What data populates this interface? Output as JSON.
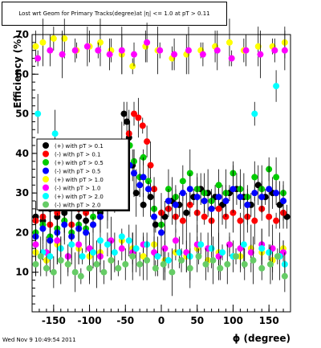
{
  "chart_data": {
    "type": "scatter",
    "title": "Lost wrt Geom for Primary Tracks(degree)at |η| <= 1.0 at pT > 0.11",
    "ylabel": "Efficiency (%)",
    "xlabel": "ϕ (degree)",
    "xlim": [
      -180,
      180
    ],
    "ylim": [
      0,
      70
    ],
    "x_ticks": [
      -150,
      -100,
      -50,
      0,
      50,
      100,
      150
    ],
    "y_ticks": [
      10,
      20,
      30,
      40,
      50,
      60,
      70
    ],
    "legend_position": "left-middle",
    "grid": false,
    "series": [
      {
        "name": "(+) with pT > 0.1",
        "color": "#000000",
        "values": [
          [
            -175,
            24
          ],
          [
            -165,
            23
          ],
          [
            -155,
            26
          ],
          [
            -145,
            24
          ],
          [
            -135,
            25
          ],
          [
            -125,
            27
          ],
          [
            -115,
            24
          ],
          [
            -105,
            23
          ],
          [
            -95,
            22
          ],
          [
            -85,
            25
          ],
          [
            -75,
            30
          ],
          [
            -65,
            29
          ],
          [
            -55,
            42
          ],
          [
            -52,
            50
          ],
          [
            -48,
            48
          ],
          [
            -45,
            44
          ],
          [
            -40,
            37
          ],
          [
            -35,
            30
          ],
          [
            -25,
            27
          ],
          [
            -15,
            29
          ],
          [
            -8,
            22
          ],
          [
            5,
            24
          ],
          [
            15,
            28
          ],
          [
            25,
            27
          ],
          [
            35,
            25
          ],
          [
            45,
            29
          ],
          [
            55,
            31
          ],
          [
            65,
            30
          ],
          [
            75,
            29
          ],
          [
            85,
            27
          ],
          [
            95,
            30
          ],
          [
            105,
            31
          ],
          [
            115,
            29
          ],
          [
            125,
            27
          ],
          [
            135,
            32
          ],
          [
            145,
            29
          ],
          [
            155,
            30
          ],
          [
            165,
            27
          ],
          [
            175,
            24
          ]
        ]
      },
      {
        "name": "(-) with pT > 0.1",
        "color": "#ff0000",
        "values": [
          [
            -175,
            23
          ],
          [
            -165,
            24
          ],
          [
            -155,
            22
          ],
          [
            -145,
            25
          ],
          [
            -135,
            23
          ],
          [
            -125,
            22
          ],
          [
            -115,
            26
          ],
          [
            -105,
            25
          ],
          [
            -95,
            27
          ],
          [
            -85,
            24
          ],
          [
            -75,
            28
          ],
          [
            -65,
            32
          ],
          [
            -55,
            38
          ],
          [
            -45,
            45
          ],
          [
            -38,
            50
          ],
          [
            -32,
            49
          ],
          [
            -26,
            47
          ],
          [
            -20,
            43
          ],
          [
            -15,
            37
          ],
          [
            -10,
            31
          ],
          [
            0,
            25
          ],
          [
            10,
            26
          ],
          [
            20,
            24
          ],
          [
            30,
            23
          ],
          [
            40,
            27
          ],
          [
            50,
            25
          ],
          [
            60,
            24
          ],
          [
            70,
            23
          ],
          [
            80,
            26
          ],
          [
            90,
            24
          ],
          [
            100,
            25
          ],
          [
            110,
            23
          ],
          [
            120,
            24
          ],
          [
            130,
            23
          ],
          [
            140,
            26
          ],
          [
            150,
            24
          ],
          [
            160,
            23
          ],
          [
            170,
            25
          ]
        ]
      },
      {
        "name": "(+) with pT > 0.5",
        "color": "#00cc00",
        "values": [
          [
            -175,
            20
          ],
          [
            -165,
            22
          ],
          [
            -155,
            19
          ],
          [
            -145,
            21
          ],
          [
            -135,
            23
          ],
          [
            -125,
            20
          ],
          [
            -115,
            22
          ],
          [
            -105,
            21
          ],
          [
            -95,
            24
          ],
          [
            -85,
            26
          ],
          [
            -75,
            29
          ],
          [
            -65,
            31
          ],
          [
            -58,
            36
          ],
          [
            -50,
            39
          ],
          [
            -44,
            42
          ],
          [
            -38,
            38
          ],
          [
            -30,
            34
          ],
          [
            -25,
            39
          ],
          [
            -18,
            33
          ],
          [
            -10,
            26
          ],
          [
            0,
            22
          ],
          [
            10,
            31
          ],
          [
            20,
            29
          ],
          [
            30,
            33
          ],
          [
            40,
            35
          ],
          [
            50,
            31
          ],
          [
            60,
            30
          ],
          [
            70,
            28
          ],
          [
            80,
            32
          ],
          [
            90,
            30
          ],
          [
            100,
            35
          ],
          [
            110,
            31
          ],
          [
            120,
            29
          ],
          [
            130,
            34
          ],
          [
            140,
            31
          ],
          [
            150,
            36
          ],
          [
            160,
            34
          ],
          [
            170,
            30
          ]
        ]
      },
      {
        "name": "(-) with pT > 0.5",
        "color": "#0000ff",
        "values": [
          [
            -175,
            19
          ],
          [
            -165,
            21
          ],
          [
            -155,
            18
          ],
          [
            -145,
            20
          ],
          [
            -135,
            22
          ],
          [
            -125,
            19
          ],
          [
            -115,
            21
          ],
          [
            -105,
            20
          ],
          [
            -95,
            22
          ],
          [
            -85,
            24
          ],
          [
            -75,
            27
          ],
          [
            -65,
            30
          ],
          [
            -58,
            33
          ],
          [
            -50,
            36
          ],
          [
            -44,
            37
          ],
          [
            -38,
            35
          ],
          [
            -30,
            32
          ],
          [
            -25,
            34
          ],
          [
            -18,
            31
          ],
          [
            -10,
            24
          ],
          [
            0,
            20
          ],
          [
            10,
            28
          ],
          [
            20,
            27
          ],
          [
            30,
            30
          ],
          [
            40,
            31
          ],
          [
            50,
            29
          ],
          [
            60,
            28
          ],
          [
            70,
            26
          ],
          [
            80,
            29
          ],
          [
            90,
            28
          ],
          [
            100,
            31
          ],
          [
            110,
            29
          ],
          [
            120,
            27
          ],
          [
            130,
            30
          ],
          [
            140,
            29
          ],
          [
            150,
            31
          ],
          [
            160,
            30
          ],
          [
            170,
            28
          ]
        ]
      },
      {
        "name": "(+) with pT > 1.0",
        "color": "#ffff00",
        "values": [
          [
            -175,
            67
          ],
          [
            -165,
            68
          ],
          [
            -150,
            69
          ],
          [
            -135,
            69
          ],
          [
            -118,
            66
          ],
          [
            -100,
            67
          ],
          [
            -85,
            68
          ],
          [
            -70,
            66
          ],
          [
            -55,
            65
          ],
          [
            -40,
            62
          ],
          [
            -22,
            67
          ],
          [
            -5,
            66
          ],
          [
            15,
            64
          ],
          [
            35,
            65
          ],
          [
            55,
            66
          ],
          [
            75,
            67
          ],
          [
            95,
            68
          ],
          [
            115,
            66
          ],
          [
            135,
            67
          ],
          [
            155,
            67
          ],
          [
            172,
            68
          ],
          [
            -175,
            15
          ],
          [
            -160,
            13
          ],
          [
            -145,
            17
          ],
          [
            -130,
            12
          ],
          [
            -115,
            16
          ],
          [
            -100,
            14
          ],
          [
            -85,
            15
          ],
          [
            -70,
            13
          ],
          [
            -55,
            18
          ],
          [
            -40,
            16
          ],
          [
            -25,
            14
          ],
          [
            -10,
            17
          ],
          [
            5,
            13
          ],
          [
            20,
            15
          ],
          [
            35,
            14
          ],
          [
            50,
            16
          ],
          [
            65,
            13
          ],
          [
            80,
            15
          ],
          [
            95,
            17
          ],
          [
            110,
            14
          ],
          [
            125,
            16
          ],
          [
            140,
            15
          ],
          [
            155,
            13
          ],
          [
            170,
            16
          ]
        ]
      },
      {
        "name": "(-) with pT > 1.0",
        "color": "#ff00ff",
        "values": [
          [
            -172,
            64
          ],
          [
            -155,
            66
          ],
          [
            -138,
            65
          ],
          [
            -120,
            66
          ],
          [
            -103,
            67
          ],
          [
            -88,
            66
          ],
          [
            -72,
            65
          ],
          [
            -55,
            66
          ],
          [
            -38,
            65
          ],
          [
            -20,
            68
          ],
          [
            -2,
            66
          ],
          [
            18,
            65
          ],
          [
            38,
            66
          ],
          [
            58,
            65
          ],
          [
            78,
            66
          ],
          [
            98,
            64
          ],
          [
            118,
            66
          ],
          [
            138,
            65
          ],
          [
            158,
            66
          ],
          [
            172,
            66
          ],
          [
            -175,
            17
          ],
          [
            -160,
            15
          ],
          [
            -145,
            18
          ],
          [
            -130,
            14
          ],
          [
            -115,
            17
          ],
          [
            -100,
            16
          ],
          [
            -85,
            14
          ],
          [
            -70,
            18
          ],
          [
            -55,
            16
          ],
          [
            -40,
            15
          ],
          [
            -25,
            17
          ],
          [
            -10,
            15
          ],
          [
            5,
            16
          ],
          [
            20,
            18
          ],
          [
            35,
            15
          ],
          [
            50,
            17
          ],
          [
            65,
            16
          ],
          [
            80,
            14
          ],
          [
            95,
            17
          ],
          [
            110,
            16
          ],
          [
            125,
            15
          ],
          [
            140,
            17
          ],
          [
            155,
            16
          ],
          [
            170,
            15
          ]
        ]
      },
      {
        "name": "(+) with pT > 2.0",
        "color": "#00ffff",
        "values": [
          [
            -172,
            50
          ],
          [
            -165,
            15
          ],
          [
            -155,
            14
          ],
          [
            -148,
            45
          ],
          [
            -140,
            16
          ],
          [
            -125,
            17
          ],
          [
            -110,
            14
          ],
          [
            -95,
            15
          ],
          [
            -85,
            18
          ],
          [
            -75,
            17
          ],
          [
            -65,
            15
          ],
          [
            -55,
            19
          ],
          [
            -45,
            18
          ],
          [
            -35,
            16
          ],
          [
            -20,
            17
          ],
          [
            -5,
            14
          ],
          [
            10,
            13
          ],
          [
            25,
            15
          ],
          [
            40,
            14
          ],
          [
            55,
            17
          ],
          [
            70,
            16
          ],
          [
            85,
            15
          ],
          [
            100,
            14
          ],
          [
            115,
            17
          ],
          [
            130,
            50
          ],
          [
            140,
            16
          ],
          [
            150,
            15
          ],
          [
            160,
            57
          ],
          [
            165,
            14
          ],
          [
            172,
            12
          ]
        ]
      },
      {
        "name": "(-) with pT > 2.0",
        "color": "#66cc66",
        "values": [
          [
            -175,
            12
          ],
          [
            -168,
            14
          ],
          [
            -160,
            11
          ],
          [
            -150,
            10
          ],
          [
            -140,
            13
          ],
          [
            -130,
            12
          ],
          [
            -120,
            10
          ],
          [
            -112,
            9
          ],
          [
            -100,
            11
          ],
          [
            -90,
            12
          ],
          [
            -80,
            10
          ],
          [
            -70,
            13
          ],
          [
            -60,
            11
          ],
          [
            -50,
            12
          ],
          [
            -40,
            14
          ],
          [
            -30,
            12
          ],
          [
            -20,
            13
          ],
          [
            -8,
            11
          ],
          [
            3,
            12
          ],
          [
            15,
            10
          ],
          [
            28,
            13
          ],
          [
            40,
            11
          ],
          [
            52,
            14
          ],
          [
            62,
            12
          ],
          [
            72,
            13
          ],
          [
            82,
            11
          ],
          [
            92,
            12
          ],
          [
            104,
            14
          ],
          [
            116,
            12
          ],
          [
            128,
            13
          ],
          [
            140,
            11
          ],
          [
            152,
            12
          ],
          [
            162,
            14
          ],
          [
            172,
            9
          ]
        ]
      }
    ]
  },
  "footer": {
    "timestamp": "Wed Nov  9 10:49:54 2011"
  }
}
